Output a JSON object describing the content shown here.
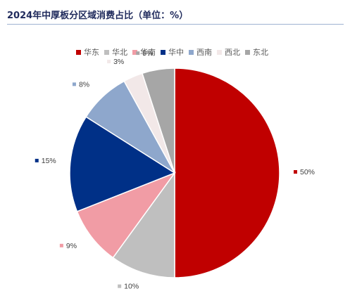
{
  "title": "2024年中厚板分区域消费占比（单位：%）",
  "chart_data": {
    "type": "pie",
    "title": "2024年中厚板分区域消费占比（单位：%）",
    "unit": "%",
    "legend_position": "top",
    "categories": [
      "华东",
      "华北",
      "华南",
      "华中",
      "西南",
      "西北",
      "东北"
    ],
    "values": [
      50,
      10,
      9,
      15,
      8,
      3,
      5
    ],
    "labels": [
      "50%",
      "10%",
      "9%",
      "15%",
      "8%",
      "3%",
      "5%"
    ],
    "colors": [
      "#c00000",
      "#bfbfbf",
      "#f19ca5",
      "#003087",
      "#8ea7cc",
      "#f2e8e8",
      "#a6a6a6"
    ]
  }
}
